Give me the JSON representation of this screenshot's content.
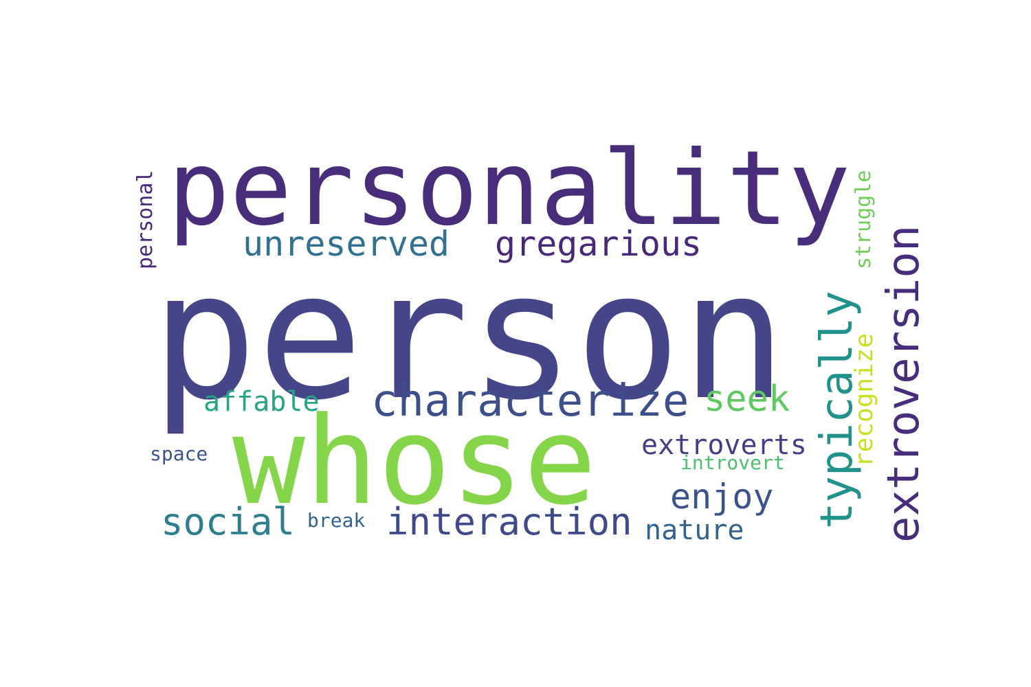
{
  "words": {
    "person": {
      "text": "person",
      "color": "#46458a"
    },
    "personality": {
      "text": "personality",
      "color": "#482d7a"
    },
    "whose": {
      "text": "whose",
      "color": "#85d54a"
    },
    "characterize": {
      "text": "characterize",
      "color": "#3d4f8a"
    },
    "unreserved": {
      "text": "unreserved",
      "color": "#31708e"
    },
    "gregarious": {
      "text": "gregarious",
      "color": "#482878"
    },
    "interaction": {
      "text": "interaction",
      "color": "#3e4a89"
    },
    "social": {
      "text": "social",
      "color": "#2d7f8e"
    },
    "seek": {
      "text": "seek",
      "color": "#5ec962"
    },
    "enjoy": {
      "text": "enjoy",
      "color": "#3b528b"
    },
    "affable": {
      "text": "affable",
      "color": "#25a584"
    },
    "extroverts": {
      "text": "extroverts",
      "color": "#433e85"
    },
    "nature": {
      "text": "nature",
      "color": "#33638d"
    },
    "space": {
      "text": "space",
      "color": "#3b528b"
    },
    "break": {
      "text": "break",
      "color": "#33638d"
    },
    "introvert": {
      "text": "introvert",
      "color": "#4ac16d"
    },
    "typically": {
      "text": "typically",
      "color": "#21918c"
    },
    "extroversion": {
      "text": "extroversion",
      "color": "#472d7b"
    },
    "recognize": {
      "text": "recognize",
      "color": "#c8e020"
    },
    "struggle": {
      "text": "struggle",
      "color": "#6ece58"
    },
    "personal": {
      "text": "personal",
      "color": "#482878"
    }
  }
}
